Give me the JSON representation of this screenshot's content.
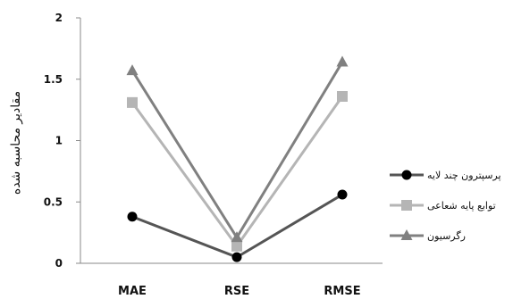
{
  "chart_data": {
    "type": "line",
    "categories": [
      "MAE",
      "RSE",
      "RMSE"
    ],
    "ylabel": "مقادیر محاسبه شده",
    "ylim": [
      0,
      2
    ],
    "yticks": [
      "0",
      "0.5",
      "1",
      "1.5",
      "2"
    ],
    "grid": false,
    "legend_position": "right",
    "series": [
      {
        "name": "پرسپترون چند لایه",
        "values": [
          0.38,
          0.05,
          0.56
        ],
        "color": "#555555",
        "marker": "circle",
        "marker_color": "#000000"
      },
      {
        "name": "توابع پایه شعاعی",
        "values": [
          1.31,
          0.14,
          1.36
        ],
        "color": "#b5b5b5",
        "marker": "square",
        "marker_color": "#b5b5b5"
      },
      {
        "name": "رگرسیون",
        "values": [
          1.57,
          0.21,
          1.64
        ],
        "color": "#808080",
        "marker": "triangle",
        "marker_color": "#808080"
      }
    ]
  }
}
